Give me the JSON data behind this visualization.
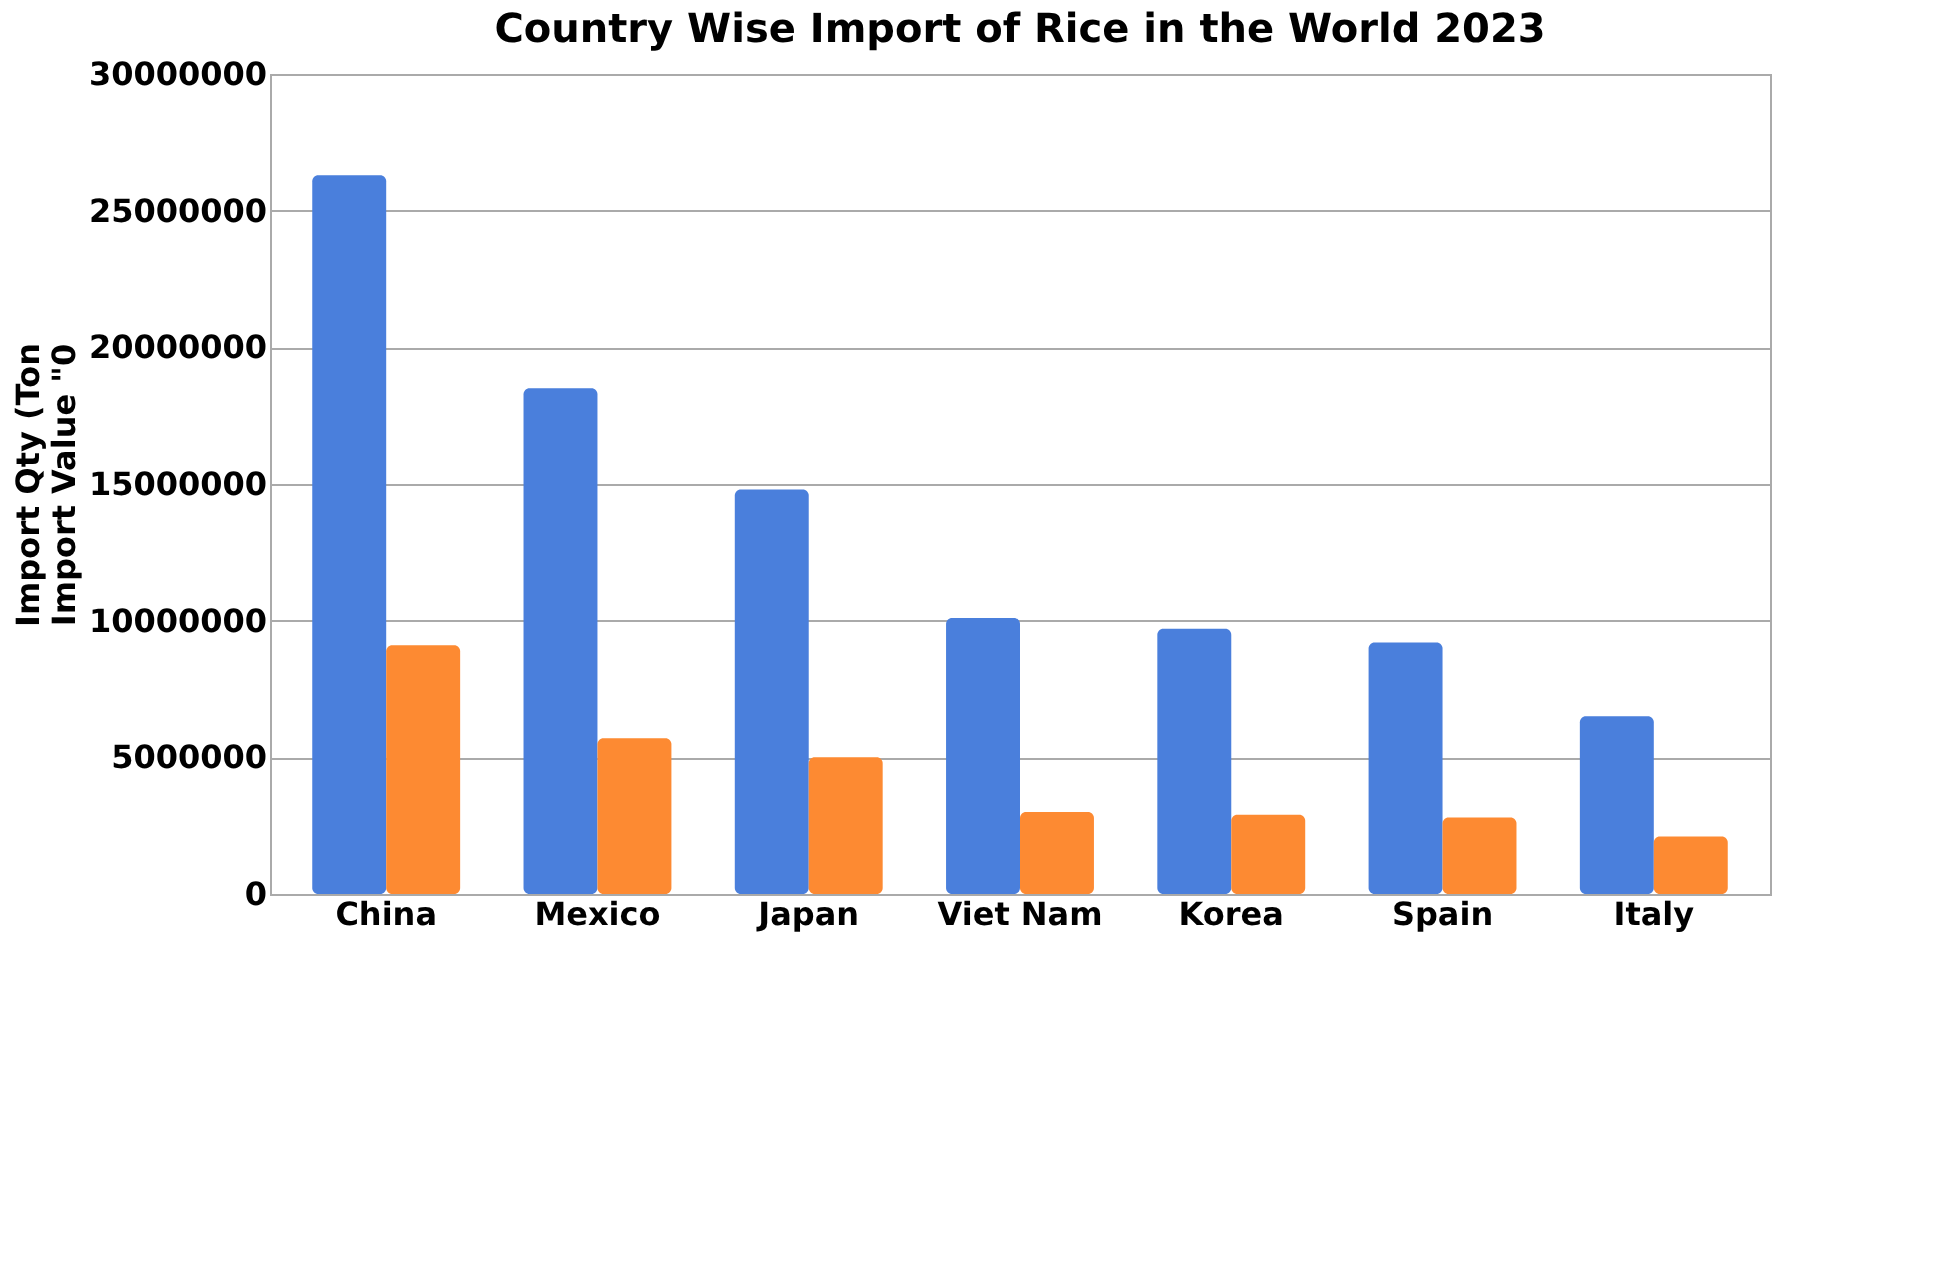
{
  "chart_data": {
    "type": "bar",
    "title": "Country Wise Import of Rice in the World 2023",
    "ylabel": "Import Qty (Ton\nImport Value \"0",
    "categories": [
      "China",
      "Mexico",
      "Japan",
      "Viet Nam",
      "Korea",
      "Spain",
      "Italy"
    ],
    "series": [
      {
        "color": "#4a7fdc",
        "values": [
          26300000,
          18500000,
          14800000,
          10100000,
          9700000,
          9200000,
          6500000
        ]
      },
      {
        "color": "#fd8a32",
        "values": [
          9100000,
          5700000,
          5000000,
          3000000,
          2900000,
          2800000,
          2100000
        ]
      }
    ],
    "ylim": [
      0,
      30000000
    ],
    "yticks": [
      0,
      5000000,
      10000000,
      15000000,
      20000000,
      25000000,
      30000000
    ],
    "grid": "y"
  }
}
